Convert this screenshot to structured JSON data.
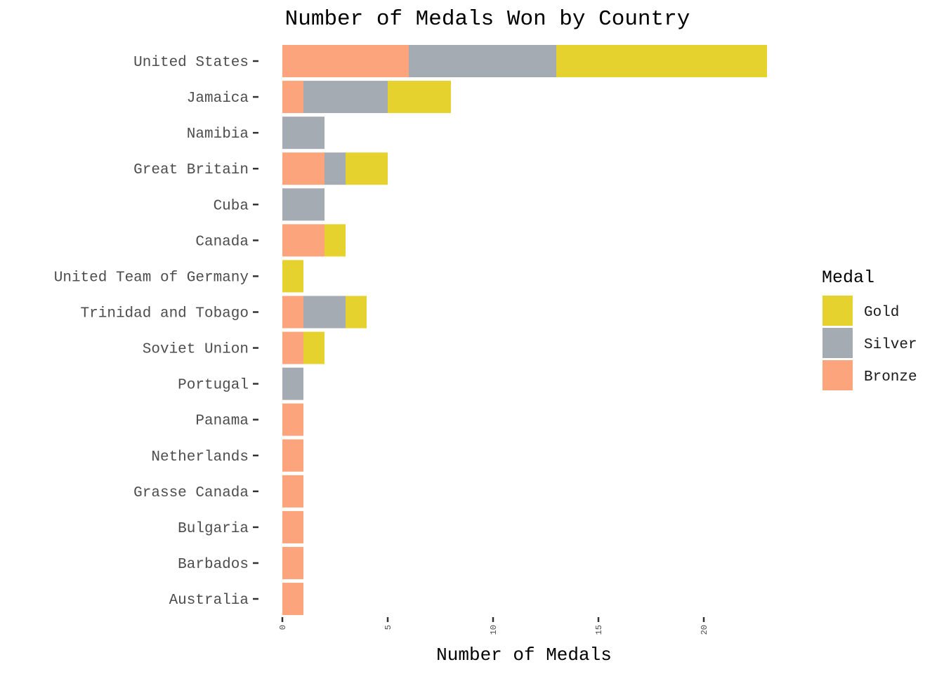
{
  "chart_data": {
    "type": "bar",
    "orientation": "horizontal",
    "stacked": true,
    "title": "Number of Medals Won by Country",
    "xlabel": "Number of Medals",
    "ylabel": "",
    "xlim": [
      0,
      23
    ],
    "xticks": [
      0,
      5,
      10,
      15,
      20
    ],
    "grid": false,
    "legend": {
      "title": "Medal",
      "position": "right",
      "entries": [
        "Gold",
        "Silver",
        "Bronze"
      ]
    },
    "categories": [
      "United States",
      "Jamaica",
      "Namibia",
      "Great Britain",
      "Cuba",
      "Canada",
      "United Team of Germany",
      "Trinidad and Tobago",
      "Soviet Union",
      "Portugal",
      "Panama",
      "Netherlands",
      "Grasse Canada",
      "Bulgaria",
      "Barbados",
      "Australia"
    ],
    "series": [
      {
        "name": "Bronze",
        "color": "#FCA57D",
        "values": [
          6,
          1,
          0,
          2,
          0,
          2,
          0,
          1,
          1,
          0,
          1,
          1,
          1,
          1,
          1,
          1
        ]
      },
      {
        "name": "Silver",
        "color": "#A5ABB2",
        "values": [
          7,
          4,
          2,
          1,
          2,
          0,
          0,
          2,
          0,
          1,
          0,
          0,
          0,
          0,
          0,
          0
        ]
      },
      {
        "name": "Gold",
        "color": "#E5D22E",
        "values": [
          10,
          3,
          0,
          2,
          0,
          1,
          1,
          1,
          1,
          0,
          0,
          0,
          0,
          0,
          0,
          0
        ]
      }
    ]
  }
}
